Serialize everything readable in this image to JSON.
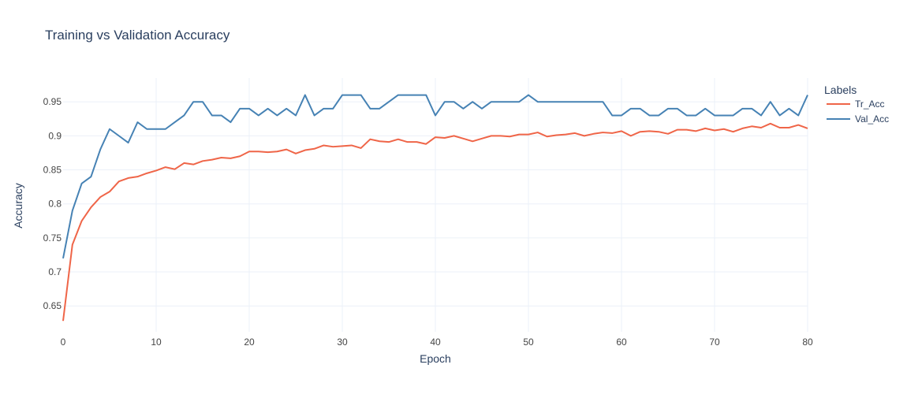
{
  "chart_data": {
    "type": "line",
    "title": "Training vs Validation Accuracy",
    "xlabel": "Epoch",
    "ylabel": "Accuracy",
    "xlim": [
      0,
      80
    ],
    "ylim": [
      0.612,
      0.985
    ],
    "xticks": [
      0,
      10,
      20,
      30,
      40,
      50,
      60,
      70,
      80
    ],
    "yticks": [
      0.65,
      0.7,
      0.75,
      0.8,
      0.85,
      0.9,
      0.95
    ],
    "ytick_labels": [
      "0.65",
      "0.7",
      "0.75",
      "0.8",
      "0.85",
      "0.9",
      "0.95"
    ],
    "grid": true,
    "legend": {
      "title": "Labels",
      "position": "right"
    },
    "series": [
      {
        "name": "Tr_Acc",
        "color": "#EF6548",
        "x": [
          0,
          1,
          2,
          3,
          4,
          5,
          6,
          7,
          8,
          9,
          10,
          11,
          12,
          13,
          14,
          15,
          16,
          17,
          18,
          19,
          20,
          21,
          22,
          23,
          24,
          25,
          26,
          27,
          28,
          29,
          30,
          31,
          32,
          33,
          34,
          35,
          36,
          37,
          38,
          39,
          40,
          41,
          42,
          43,
          44,
          45,
          46,
          47,
          48,
          49,
          50,
          51,
          52,
          53,
          54,
          55,
          56,
          57,
          58,
          59,
          60,
          61,
          62,
          63,
          64,
          65,
          66,
          67,
          68,
          69,
          70,
          71,
          72,
          73,
          74,
          75,
          76,
          77,
          78,
          79,
          80
        ],
        "values": [
          0.628,
          0.74,
          0.775,
          0.795,
          0.81,
          0.818,
          0.833,
          0.838,
          0.84,
          0.845,
          0.849,
          0.854,
          0.851,
          0.86,
          0.858,
          0.863,
          0.865,
          0.868,
          0.867,
          0.87,
          0.877,
          0.877,
          0.876,
          0.877,
          0.88,
          0.874,
          0.879,
          0.881,
          0.886,
          0.884,
          0.885,
          0.886,
          0.882,
          0.895,
          0.892,
          0.891,
          0.895,
          0.891,
          0.891,
          0.888,
          0.898,
          0.897,
          0.9,
          0.896,
          0.892,
          0.896,
          0.9,
          0.9,
          0.899,
          0.902,
          0.902,
          0.905,
          0.899,
          0.901,
          0.902,
          0.904,
          0.9,
          0.903,
          0.905,
          0.904,
          0.907,
          0.9,
          0.906,
          0.907,
          0.906,
          0.903,
          0.909,
          0.909,
          0.907,
          0.911,
          0.908,
          0.91,
          0.906,
          0.911,
          0.914,
          0.912,
          0.918,
          0.912,
          0.912,
          0.916,
          0.911
        ]
      },
      {
        "name": "Val_Acc",
        "color": "#4682B4",
        "x": [
          0,
          1,
          2,
          3,
          4,
          5,
          6,
          7,
          8,
          9,
          10,
          11,
          12,
          13,
          14,
          15,
          16,
          17,
          18,
          19,
          20,
          21,
          22,
          23,
          24,
          25,
          26,
          27,
          28,
          29,
          30,
          31,
          32,
          33,
          34,
          35,
          36,
          37,
          38,
          39,
          40,
          41,
          42,
          43,
          44,
          45,
          46,
          47,
          48,
          49,
          50,
          51,
          52,
          53,
          54,
          55,
          56,
          57,
          58,
          59,
          60,
          61,
          62,
          63,
          64,
          65,
          66,
          67,
          68,
          69,
          70,
          71,
          72,
          73,
          74,
          75,
          76,
          77,
          78,
          79,
          80
        ],
        "values": [
          0.72,
          0.79,
          0.83,
          0.84,
          0.88,
          0.91,
          0.9,
          0.89,
          0.92,
          0.91,
          0.91,
          0.91,
          0.92,
          0.93,
          0.95,
          0.95,
          0.93,
          0.93,
          0.92,
          0.94,
          0.94,
          0.93,
          0.94,
          0.93,
          0.94,
          0.93,
          0.96,
          0.93,
          0.94,
          0.94,
          0.96,
          0.96,
          0.96,
          0.94,
          0.94,
          0.95,
          0.96,
          0.96,
          0.96,
          0.96,
          0.93,
          0.95,
          0.95,
          0.94,
          0.95,
          0.94,
          0.95,
          0.95,
          0.95,
          0.95,
          0.96,
          0.95,
          0.95,
          0.95,
          0.95,
          0.95,
          0.95,
          0.95,
          0.95,
          0.93,
          0.93,
          0.94,
          0.94,
          0.93,
          0.93,
          0.94,
          0.94,
          0.93,
          0.93,
          0.94,
          0.93,
          0.93,
          0.93,
          0.94,
          0.94,
          0.93,
          0.95,
          0.93,
          0.94,
          0.93,
          0.96
        ]
      }
    ]
  }
}
